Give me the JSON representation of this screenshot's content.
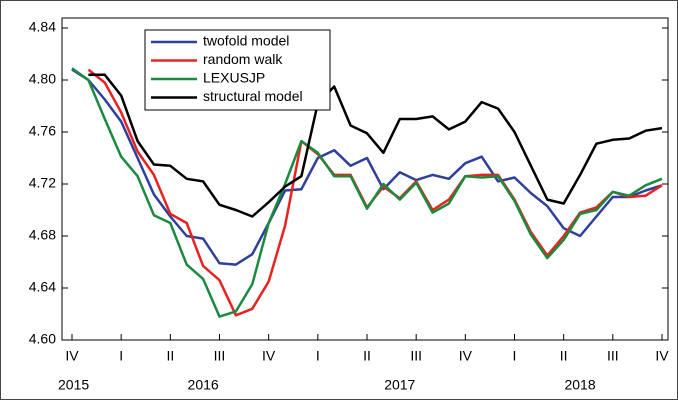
{
  "chart_data": {
    "type": "line",
    "categories": [
      "IV",
      null,
      null,
      "I",
      null,
      null,
      "II",
      null,
      null,
      "III",
      null,
      null,
      "IV",
      null,
      null,
      "I",
      null,
      null,
      "II",
      null,
      null,
      "III",
      null,
      null,
      "IV",
      null,
      null,
      "I",
      null,
      null,
      "II",
      null,
      null,
      "III",
      null,
      null,
      "IV"
    ],
    "year_categories": [
      "2015",
      null,
      null,
      null,
      null,
      null,
      null,
      null,
      "2016",
      null,
      null,
      null,
      null,
      null,
      null,
      null,
      null,
      null,
      null,
      null,
      "2017",
      null,
      null,
      null,
      null,
      null,
      null,
      null,
      null,
      null,
      null,
      "2018",
      null,
      null,
      null,
      null,
      null
    ],
    "ylim": [
      4.6,
      4.84
    ],
    "yticks": [
      {
        "value": 4.6,
        "label": "4.60"
      },
      4.64,
      4.68,
      4.72,
      4.76,
      {
        "value": 4.8,
        "label": "4.80"
      },
      4.84
    ],
    "legend": "top-left",
    "series": [
      {
        "name": "twofold model",
        "color": "#2e3f9e",
        "values": [
          4.808,
          4.8,
          4.785,
          4.768,
          4.74,
          4.712,
          4.695,
          4.68,
          4.678,
          4.659,
          4.658,
          4.666,
          4.69,
          4.715,
          4.716,
          4.74,
          4.746,
          4.734,
          4.74,
          4.716,
          4.729,
          4.723,
          4.727,
          4.724,
          4.736,
          4.741,
          4.722,
          4.725,
          4.713,
          4.703,
          4.686,
          4.68,
          4.695,
          4.71,
          4.71,
          4.715,
          4.719
        ]
      },
      {
        "name": "random walk",
        "color": "#e8231f",
        "values": [
          null,
          4.808,
          4.798,
          4.775,
          4.745,
          4.727,
          4.697,
          4.69,
          4.657,
          4.646,
          4.619,
          4.624,
          4.645,
          4.688,
          4.753,
          4.743,
          4.727,
          4.727,
          4.702,
          4.718,
          4.709,
          4.722,
          4.7,
          4.708,
          4.726,
          4.727,
          4.727,
          4.708,
          4.683,
          4.665,
          4.68,
          4.698,
          4.702,
          4.714,
          4.71,
          4.711,
          4.719
        ]
      },
      {
        "name": "LEXUSJP",
        "color": "#1a8a3e",
        "values": [
          4.809,
          4.8,
          4.77,
          4.741,
          4.726,
          4.696,
          4.69,
          4.658,
          4.647,
          4.618,
          4.622,
          4.643,
          4.69,
          4.72,
          4.753,
          4.744,
          4.726,
          4.726,
          4.701,
          4.72,
          4.708,
          4.721,
          4.698,
          4.705,
          4.726,
          4.725,
          4.726,
          4.707,
          4.681,
          4.663,
          4.677,
          4.697,
          4.7,
          4.714,
          4.711,
          4.719,
          4.724
        ]
      },
      {
        "name": "structural model",
        "color": "#000000",
        "values": [
          null,
          4.804,
          4.804,
          4.788,
          4.753,
          4.735,
          4.734,
          4.724,
          4.722,
          4.704,
          4.7,
          4.695,
          4.706,
          4.718,
          4.726,
          4.782,
          4.795,
          4.765,
          4.759,
          4.744,
          4.77,
          4.77,
          4.772,
          4.762,
          4.768,
          4.783,
          4.778,
          4.76,
          4.734,
          4.708,
          4.705,
          4.727,
          4.751,
          4.754,
          4.755,
          4.761,
          4.763
        ]
      }
    ]
  }
}
